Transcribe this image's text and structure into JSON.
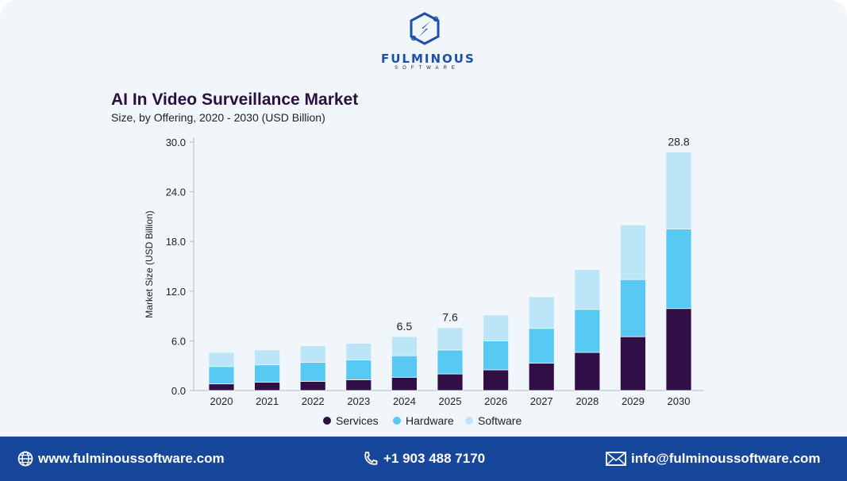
{
  "brand": {
    "name": "FULMINOUS",
    "tagline": "SOFTWARE"
  },
  "footer": {
    "website": "www.fulminoussoftware.com",
    "phone": "+1 903 488 7170",
    "email": "info@fulminoussoftware.com"
  },
  "colors": {
    "Services": "#2f0f45",
    "Hardware": "#58c9f2",
    "Software": "#bce6f8",
    "footer": "#17479b"
  },
  "chart_data": {
    "type": "bar",
    "stacked": true,
    "title": "AI In Video Surveillance Market",
    "subtitle": "Size, by Offering, 2020 - 2030 (USD Billion)",
    "xlabel": "",
    "ylabel": "Market Size (USD Billion)",
    "ylim": [
      0,
      30
    ],
    "yticks": [
      "0.0",
      "6.0",
      "12.0",
      "18.0",
      "24.0",
      "30.0"
    ],
    "grid": false,
    "legend": "bottom",
    "categories": [
      "2020",
      "2021",
      "2022",
      "2023",
      "2024",
      "2025",
      "2026",
      "2027",
      "2028",
      "2029",
      "2030"
    ],
    "series": [
      {
        "name": "Services",
        "values": [
          0.8,
          1.0,
          1.1,
          1.3,
          1.6,
          2.0,
          2.5,
          3.3,
          4.6,
          6.5,
          9.9
        ]
      },
      {
        "name": "Hardware",
        "values": [
          2.1,
          2.1,
          2.3,
          2.4,
          2.6,
          2.9,
          3.5,
          4.2,
          5.2,
          6.9,
          9.6
        ]
      },
      {
        "name": "Software",
        "values": [
          1.7,
          1.8,
          2.0,
          2.0,
          2.3,
          2.7,
          3.1,
          3.8,
          4.8,
          6.6,
          9.3
        ]
      }
    ],
    "data_labels": [
      {
        "category": "2024",
        "label": "6.5"
      },
      {
        "category": "2025",
        "label": "7.6"
      },
      {
        "category": "2030",
        "label": "28.8"
      }
    ]
  }
}
